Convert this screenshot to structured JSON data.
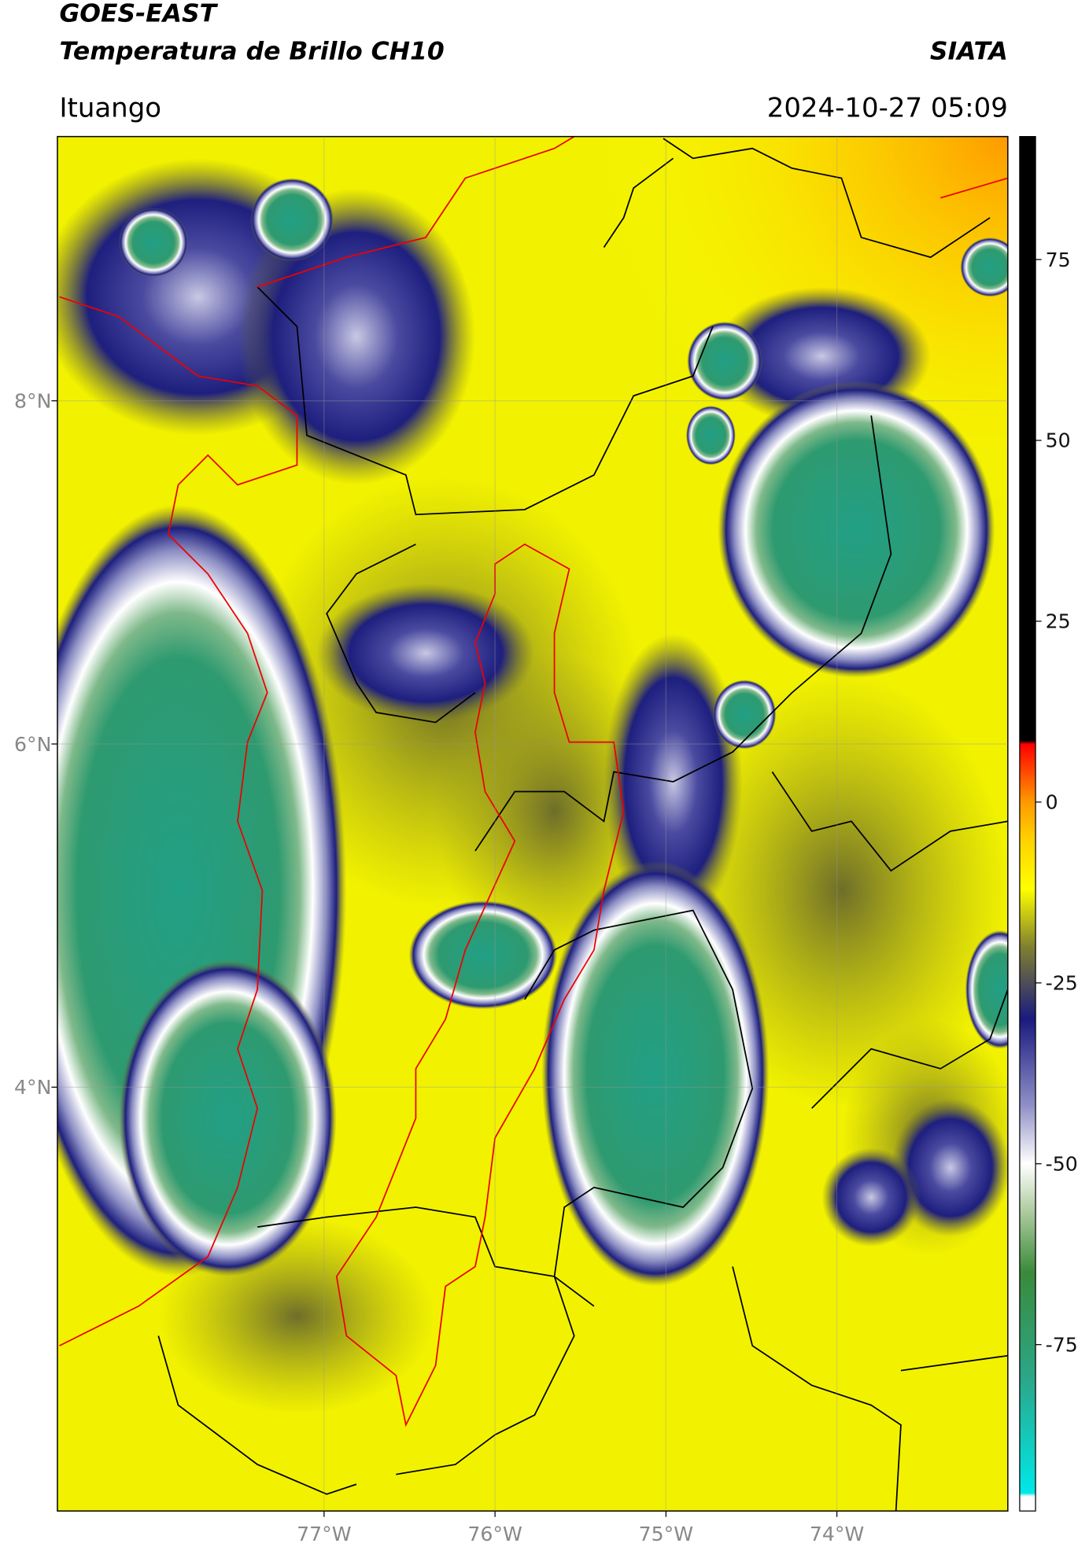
{
  "header": {
    "title_line1": "GOES-EAST",
    "title_line2": "Temperatura de Brillo CH10",
    "source": "SIATA",
    "location": "Ituango",
    "datetime": "2024-10-27 05:09"
  },
  "map": {
    "xlim": [
      -78.56,
      -73.0
    ],
    "ylim": [
      1.53,
      9.54
    ],
    "xticks": [
      {
        "value": -77,
        "label": "77°W"
      },
      {
        "value": -76,
        "label": "76°W"
      },
      {
        "value": -75,
        "label": "75°W"
      },
      {
        "value": -74,
        "label": "74°W"
      }
    ],
    "yticks": [
      {
        "value": 8,
        "label": "8°N"
      },
      {
        "value": 6,
        "label": "6°N"
      },
      {
        "value": 4,
        "label": "4°N"
      }
    ],
    "grid": true
  },
  "colorbar": {
    "lim": [
      -98,
      92
    ],
    "ticks": [
      75,
      50,
      25,
      0,
      -25,
      -50,
      -75
    ],
    "stops": [
      {
        "value": -98,
        "color": "#ffffff"
      },
      {
        "value": -96,
        "color": "#ffffff"
      },
      {
        "value": -95.5,
        "color": "#00e8e8"
      },
      {
        "value": -80,
        "color": "#2aa88a"
      },
      {
        "value": -65,
        "color": "#3a8a3a"
      },
      {
        "value": -57,
        "color": "#a8c89a"
      },
      {
        "value": -50,
        "color": "#ffffff"
      },
      {
        "value": -42,
        "color": "#9090c8"
      },
      {
        "value": -30,
        "color": "#1a1a80"
      },
      {
        "value": -20,
        "color": "#808030"
      },
      {
        "value": -12,
        "color": "#ffff00"
      },
      {
        "value": -5,
        "color": "#ffd000"
      },
      {
        "value": 0,
        "color": "#ff9900"
      },
      {
        "value": 8,
        "color": "#ff0000"
      },
      {
        "value": 8.5,
        "color": "#000000"
      },
      {
        "value": 92,
        "color": "#000000"
      }
    ]
  }
}
